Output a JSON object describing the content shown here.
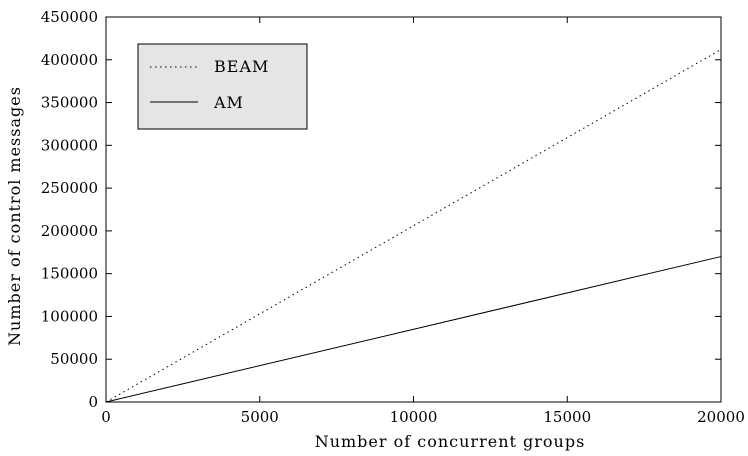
{
  "chart_data": {
    "type": "line",
    "title": "",
    "xlabel": "Number of concurrent groups",
    "ylabel": "Number of control messages",
    "xlim": [
      0,
      20000
    ],
    "ylim": [
      0,
      450000
    ],
    "x_ticks": [
      "0",
      "5000",
      "10000",
      "15000",
      "20000"
    ],
    "y_ticks": [
      "0",
      "50000",
      "100000",
      "150000",
      "200000",
      "250000",
      "300000",
      "350000",
      "400000",
      "450000"
    ],
    "grid": false,
    "legend_position": "top-left",
    "series": [
      {
        "name": "BEAM",
        "style": "dotted",
        "color": "#000000",
        "x": [
          0,
          20000
        ],
        "y": [
          0,
          412000
        ]
      },
      {
        "name": "AM",
        "style": "solid",
        "color": "#000000",
        "x": [
          0,
          20000
        ],
        "y": [
          0,
          170000
        ]
      }
    ]
  }
}
